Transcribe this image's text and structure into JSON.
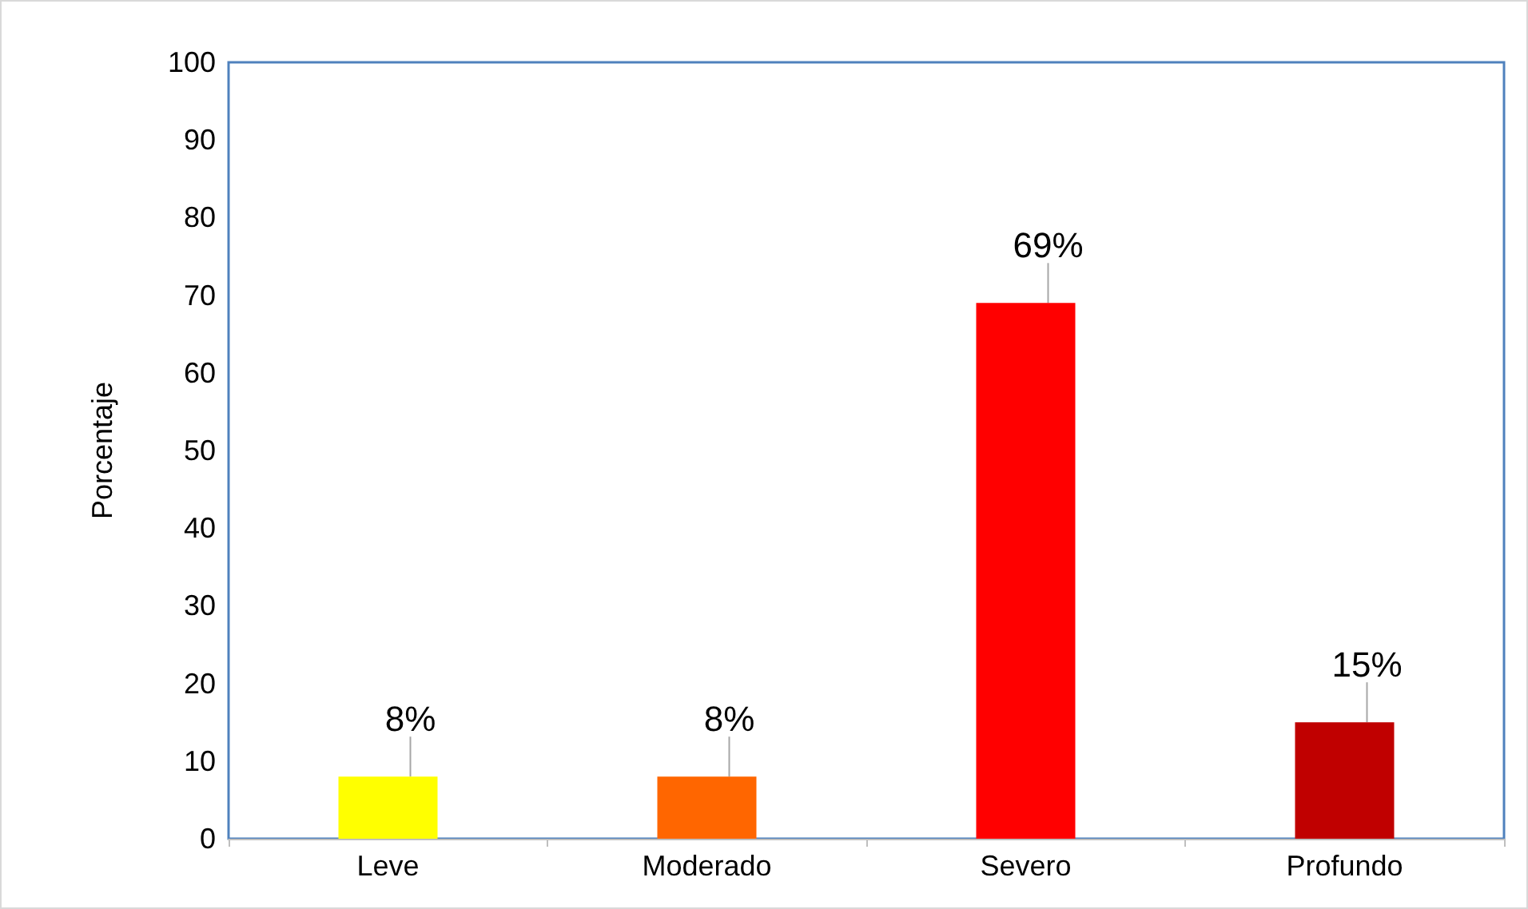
{
  "chart_data": {
    "type": "bar",
    "ylabel": "Porcentaje",
    "categories": [
      "Leve",
      "Moderado",
      "Severo",
      "Profundo"
    ],
    "values": [
      8,
      8,
      69,
      15
    ],
    "colors": [
      "#ffff00",
      "#ff6600",
      "#ff0000",
      "#c00000"
    ],
    "value_labels": [
      "8%",
      "8%",
      "69%",
      "15%"
    ],
    "ylim": [
      0,
      100
    ],
    "yticks": [
      0,
      10,
      20,
      30,
      40,
      50,
      60,
      70,
      80,
      90,
      100
    ],
    "grid": false
  }
}
